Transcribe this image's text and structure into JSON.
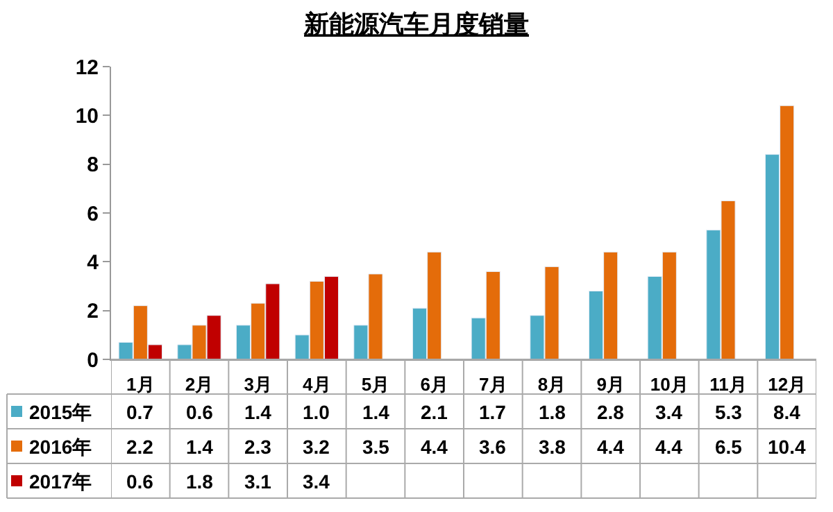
{
  "chart_data": {
    "type": "bar",
    "title": "新能源汽车月度销量",
    "categories": [
      "1月",
      "2月",
      "3月",
      "4月",
      "5月",
      "6月",
      "7月",
      "8月",
      "9月",
      "10月",
      "11月",
      "12月"
    ],
    "series": [
      {
        "name": "2015年",
        "color": "#4bacc6",
        "values": [
          0.7,
          0.6,
          1.4,
          1.0,
          1.4,
          2.1,
          1.7,
          1.8,
          2.8,
          3.4,
          5.3,
          8.4
        ],
        "value_labels": [
          "0.7",
          "0.6",
          "1.4",
          "1.0",
          "1.4",
          "2.1",
          "1.7",
          "1.8",
          "2.8",
          "3.4",
          "5.3",
          "8.4"
        ]
      },
      {
        "name": "2016年",
        "color": "#e46c0a",
        "values": [
          2.2,
          1.4,
          2.3,
          3.2,
          3.5,
          4.4,
          3.6,
          3.8,
          4.4,
          4.4,
          6.5,
          10.4
        ],
        "value_labels": [
          "2.2",
          "1.4",
          "2.3",
          "3.2",
          "3.5",
          "4.4",
          "3.6",
          "3.8",
          "4.4",
          "4.4",
          "6.5",
          "10.4"
        ]
      },
      {
        "name": "2017年",
        "color": "#c00000",
        "values": [
          0.6,
          1.8,
          3.1,
          3.4,
          null,
          null,
          null,
          null,
          null,
          null,
          null,
          null
        ],
        "value_labels": [
          "0.6",
          "1.8",
          "3.1",
          "3.4",
          null,
          null,
          null,
          null,
          null,
          null,
          null,
          null
        ]
      }
    ],
    "ylim": [
      0,
      12
    ],
    "yticks": [
      0,
      2,
      4,
      6,
      8,
      10,
      12
    ],
    "legend": "bottom"
  }
}
